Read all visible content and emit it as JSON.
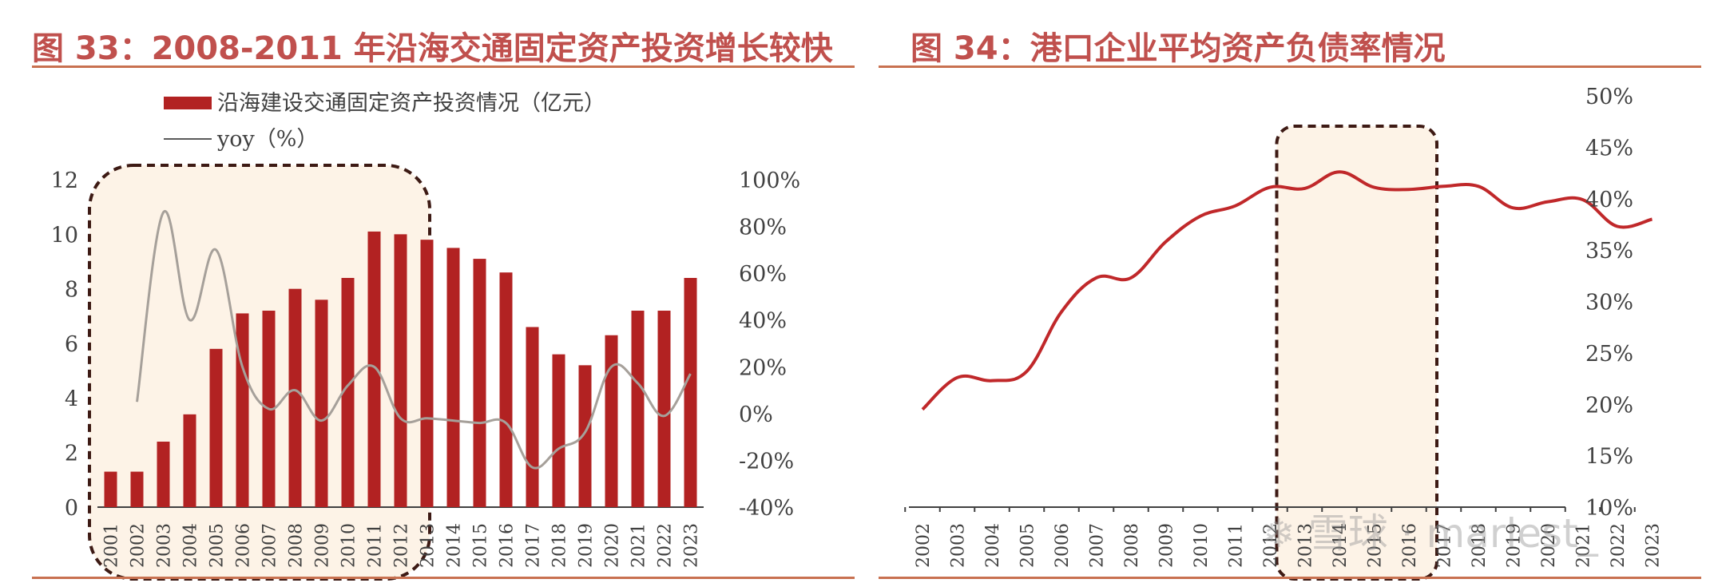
{
  "colors": {
    "title": "#c0504d",
    "bar": "#b22222",
    "yoy_line": "#a6a09a",
    "line": "#c0282a",
    "highlight_fill": "#fdf3e7",
    "highlight_border": "#3d1a14"
  },
  "watermark": {
    "text": "雪球 · marlest_",
    "icon": "snowball-logo-icon"
  },
  "charts": [
    {
      "figure_title": "图 33：2008-2011 年沿海交通固定资产投资增长较快",
      "legend": {
        "bar": "沿海建设交通固定资产投资情况（亿元）",
        "line": "yoy（%）"
      },
      "left_ticks": [
        "0",
        "2",
        "4",
        "6",
        "8",
        "10",
        "12"
      ],
      "right_ticks": [
        "-40%",
        "-20%",
        "0%",
        "20%",
        "40%",
        "60%",
        "80%",
        "100%"
      ]
    },
    {
      "figure_title": "图 34：港口企业平均资产负债率情况",
      "right_ticks": [
        "10%",
        "15%",
        "20%",
        "25%",
        "30%",
        "35%",
        "40%",
        "45%",
        "50%"
      ]
    }
  ],
  "chart_data": [
    {
      "type": "bar",
      "title": "图 33：2008-2011 年沿海交通固定资产投资增长较快",
      "categories": [
        "2001",
        "2002",
        "2003",
        "2004",
        "2005",
        "2006",
        "2007",
        "2008",
        "2009",
        "2010",
        "2011",
        "2012",
        "2013",
        "2014",
        "2015",
        "2016",
        "2017",
        "2018",
        "2019",
        "2020",
        "2021",
        "2022",
        "2023"
      ],
      "series": [
        {
          "name": "沿海建设交通固定资产投资情况（亿元）",
          "type": "bar",
          "axis": "left",
          "values": [
            1.3,
            1.3,
            2.4,
            3.4,
            5.8,
            7.1,
            7.2,
            8.0,
            7.6,
            8.4,
            10.1,
            10.0,
            9.8,
            9.5,
            9.1,
            8.6,
            6.6,
            5.6,
            5.2,
            6.3,
            7.2,
            7.2,
            8.4
          ]
        },
        {
          "name": "yoy（%）",
          "type": "line",
          "axis": "right",
          "values": [
            null,
            5,
            86,
            40,
            70,
            20,
            2,
            10,
            -3,
            12,
            20,
            -2,
            -2,
            -3,
            -4,
            -4,
            -23,
            -15,
            -8,
            20,
            13,
            -1,
            17
          ]
        }
      ],
      "ylim": [
        0,
        12
      ],
      "y2lim": [
        -40,
        100
      ],
      "highlight_range": [
        "2001",
        "2012"
      ],
      "legend_position": "top-left"
    },
    {
      "type": "line",
      "title": "图 34：港口企业平均资产负债率情况",
      "x": [
        2002,
        2003,
        2004,
        2005,
        2006,
        2007,
        2008,
        2009,
        2010,
        2011,
        2012,
        2013,
        2014,
        2015,
        2016,
        2017,
        2018,
        2019,
        2020,
        2021,
        2022,
        2023
      ],
      "x_ticks": [
        "2002",
        "2003",
        "2004",
        "2005",
        "2006",
        "2007",
        "2008",
        "2009",
        "2010",
        "2011",
        "2012",
        "2013",
        "2014",
        "2015",
        "2016",
        "2017",
        "2018",
        "2019",
        "2020",
        "2021",
        "2022",
        "2023"
      ],
      "series": [
        {
          "values": [
            19.5,
            22.6,
            22.3,
            23.2,
            29.0,
            32.3,
            32.3,
            35.8,
            38.3,
            39.3,
            41.1,
            41.0,
            42.6,
            41.1,
            40.9,
            41.2,
            41.2,
            39.1,
            39.7,
            39.9,
            37.3,
            38.0
          ]
        }
      ],
      "ylim": [
        10,
        50
      ],
      "y_axis_side": "right",
      "highlight_range": [
        2013,
        2016
      ]
    }
  ]
}
